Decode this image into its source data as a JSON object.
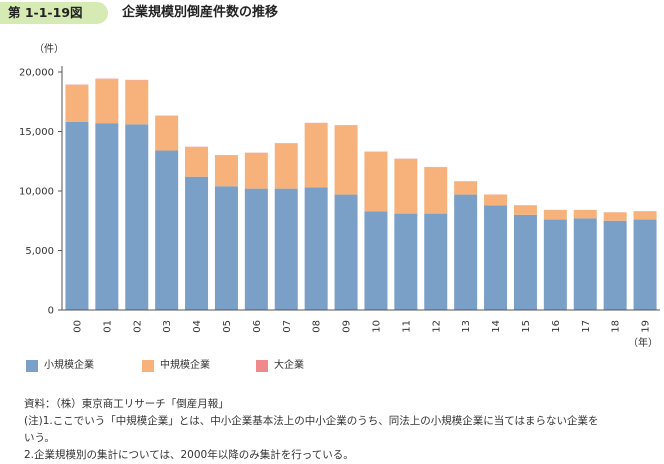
{
  "figure": {
    "number": "第 1-1-19図",
    "title": "企業規模別倒産件数の推移"
  },
  "chart_data": {
    "type": "bar",
    "stacked": true,
    "categories": [
      "00",
      "01",
      "02",
      "03",
      "04",
      "05",
      "06",
      "07",
      "08",
      "09",
      "10",
      "11",
      "12",
      "13",
      "14",
      "15",
      "16",
      "17",
      "18",
      "19"
    ],
    "series": [
      {
        "name": "小規模企業",
        "color": "#7aa0c8",
        "values": [
          15800,
          15700,
          15600,
          13400,
          11200,
          10400,
          10200,
          10200,
          10300,
          9700,
          8300,
          8100,
          8100,
          9700,
          8800,
          8000,
          7600,
          7700,
          7500,
          7600
        ]
      },
      {
        "name": "中規模企業",
        "color": "#f6b27a",
        "values": [
          3100,
          3700,
          3700,
          2900,
          2500,
          2600,
          3000,
          3800,
          5400,
          5800,
          5000,
          4600,
          3900,
          1100,
          900,
          800,
          800,
          700,
          700,
          700
        ]
      },
      {
        "name": "大企業",
        "color": "#f08a8a",
        "values": [
          40,
          40,
          40,
          30,
          20,
          20,
          20,
          20,
          30,
          30,
          20,
          20,
          20,
          20,
          10,
          10,
          10,
          10,
          10,
          10
        ]
      }
    ],
    "ylim": [
      0,
      20000
    ],
    "yticks": [
      0,
      5000,
      10000,
      15000,
      20000
    ],
    "ytick_labels": [
      "0",
      "5,000",
      "10,000",
      "15,000",
      "20,000"
    ],
    "y_unit": "（件）",
    "x_unit": "（年）",
    "legend_position": "bottom-left"
  },
  "notes": {
    "source": "資料：（株）東京商工リサーチ「倒産月報」",
    "note1_line1": "(注)1.ここでいう「中規模企業」とは、中小企業基本法上の中小企業のうち、同法上の小規模企業に当てはまらない企業を",
    "note1_line2": "いう。",
    "note2": "2.企業規模別の集計については、2000年以降のみ集計を行っている。"
  }
}
